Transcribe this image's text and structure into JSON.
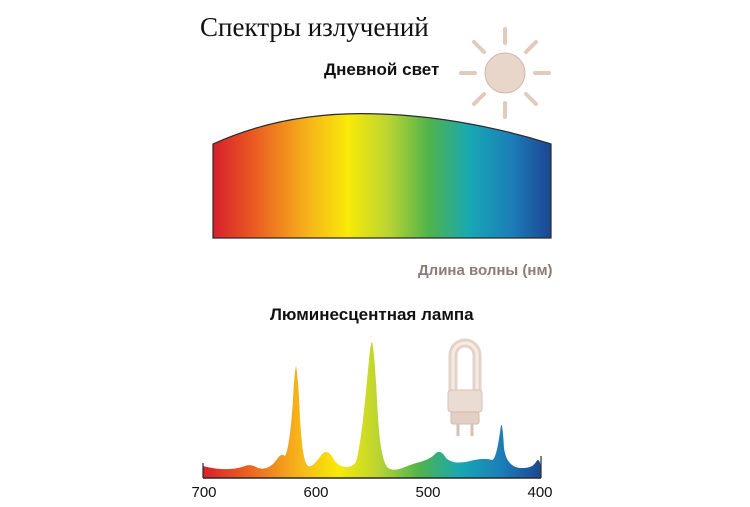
{
  "title": "Спектры излучений",
  "daylight": {
    "label": "Дневной свет",
    "icon": "sun-icon"
  },
  "wavelength_caption": "Длина волны (нм)",
  "lamp": {
    "label": "Люминесцентная лампа",
    "icon": "fluorescent-lamp-icon"
  },
  "axis": {
    "ticks": [
      "700",
      "600",
      "500",
      "400"
    ]
  },
  "colors": {
    "red": "#d8202a",
    "orange": "#f39a1c",
    "yellow": "#f7e90a",
    "green": "#7fc142",
    "cyan": "#1aa5b8",
    "blue": "#1e4f9a",
    "sun": "#e8d4c8",
    "lamp": "#eadbd3"
  }
}
